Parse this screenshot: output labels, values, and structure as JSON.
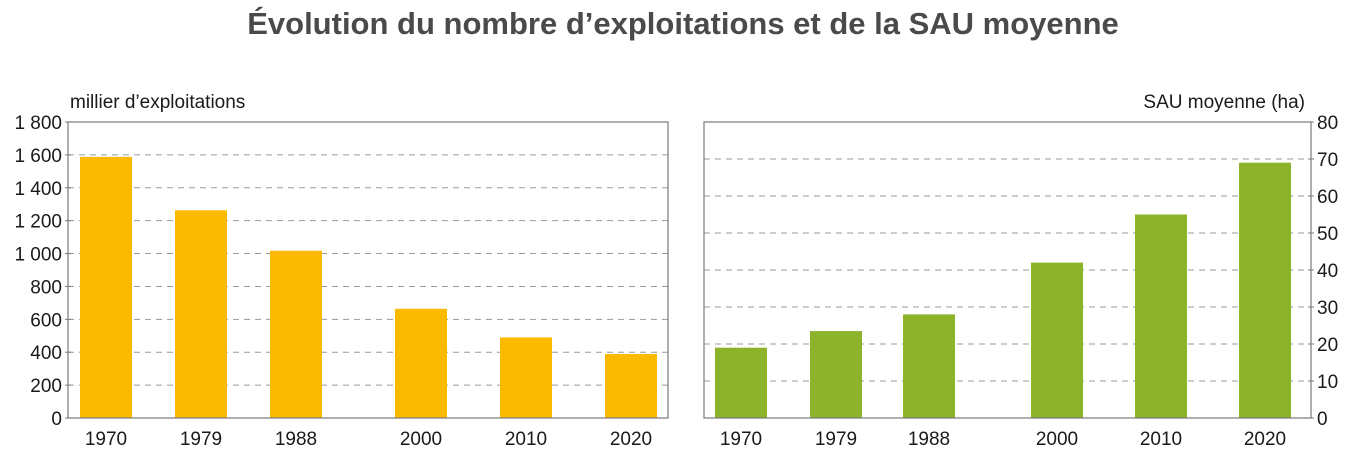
{
  "title": "Évolution du nombre d’exploitations et de la SAU moyenne",
  "chart_data": [
    {
      "type": "bar",
      "title": "",
      "xlabel": "",
      "ylabel": "millier d’exploitations",
      "categories": [
        "1970",
        "1979",
        "1988",
        "2000",
        "2010",
        "2020"
      ],
      "values": [
        1588,
        1263,
        1017,
        664,
        490,
        389
      ],
      "ylim": [
        0,
        1800
      ],
      "yticks": [
        0,
        200,
        400,
        600,
        800,
        1000,
        1200,
        1400,
        1600,
        1800
      ],
      "ytick_labels": [
        "0",
        "200",
        "400",
        "600",
        "800",
        "1 000",
        "1 200",
        "1 400",
        "1 600",
        "1 800"
      ],
      "grid": true,
      "color": "#fbb900",
      "axis_side": "left"
    },
    {
      "type": "bar",
      "title": "",
      "xlabel": "",
      "ylabel": "SAU moyenne (ha)",
      "categories": [
        "1970",
        "1979",
        "1988",
        "2000",
        "2010",
        "2020"
      ],
      "values": [
        19,
        23.5,
        28,
        42,
        55,
        69
      ],
      "ylim": [
        0,
        80
      ],
      "yticks": [
        0,
        10,
        20,
        30,
        40,
        50,
        60,
        70,
        80
      ],
      "ytick_labels": [
        "0",
        "10",
        "20",
        "30",
        "40",
        "50",
        "60",
        "70",
        "80"
      ],
      "grid": true,
      "color": "#8db32b",
      "axis_side": "right"
    }
  ]
}
